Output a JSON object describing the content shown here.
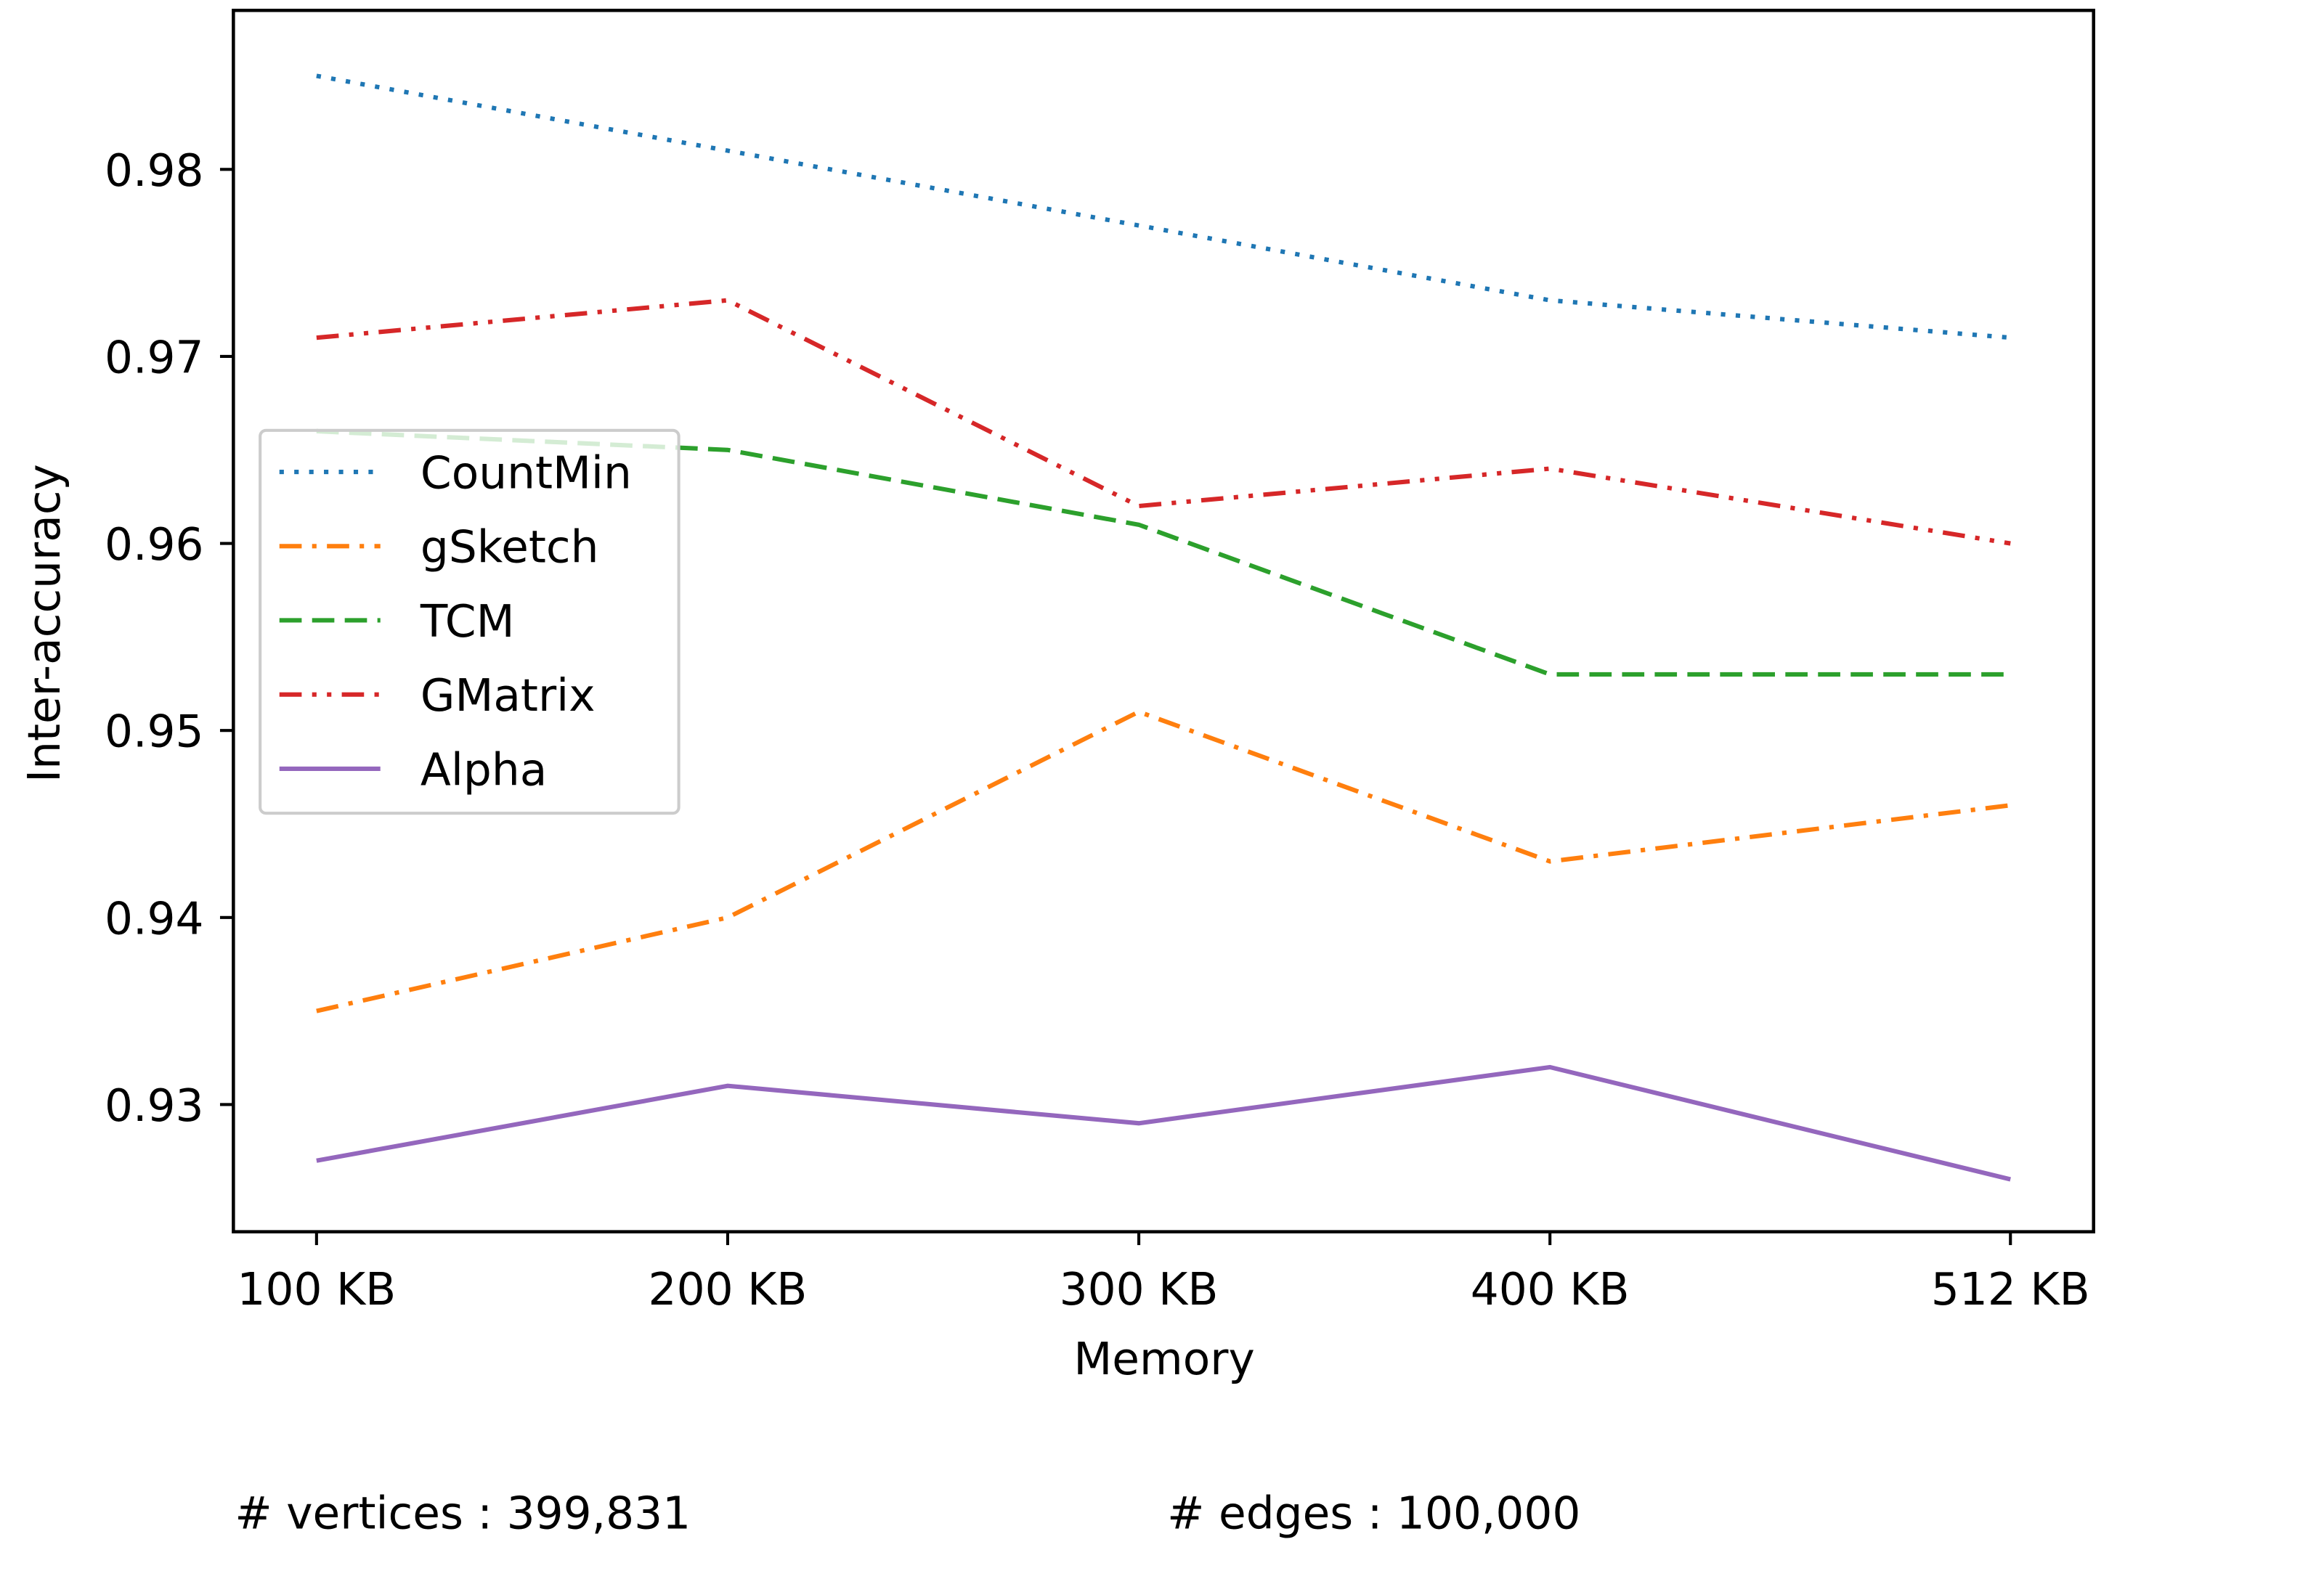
{
  "chart_data": {
    "type": "line",
    "categories": [
      "100 KB",
      "200 KB",
      "300 KB",
      "400 KB",
      "512 KB"
    ],
    "x": [
      100,
      200,
      300,
      400,
      512
    ],
    "xlabel": "Memory",
    "ylabel": "Inter-accuracy",
    "ylim": [
      0.9232,
      0.9885
    ],
    "yticks": [
      0.93,
      0.94,
      0.95,
      0.96,
      0.97,
      0.98
    ],
    "ytick_labels": [
      "0.93",
      "0.94",
      "0.95",
      "0.96",
      "0.97",
      "0.98"
    ],
    "grid": false,
    "legend_position": "center-left",
    "series": [
      {
        "name": "CountMin",
        "color": "#1f77b4",
        "style": "dotted",
        "values": [
          0.985,
          0.981,
          0.977,
          0.973,
          0.971
        ]
      },
      {
        "name": "gSketch",
        "color": "#ff7f0e",
        "style": "dashdot",
        "values": [
          0.935,
          0.94,
          0.951,
          0.943,
          0.946
        ]
      },
      {
        "name": "TCM",
        "color": "#2ca02c",
        "style": "dashed",
        "values": [
          0.966,
          0.965,
          0.961,
          0.953,
          0.953
        ]
      },
      {
        "name": "GMatrix",
        "color": "#d62728",
        "style": "dashdotdot",
        "values": [
          0.971,
          0.973,
          0.962,
          0.964,
          0.96
        ]
      },
      {
        "name": "Alpha",
        "color": "#9467bd",
        "style": "solid",
        "values": [
          0.927,
          0.931,
          0.929,
          0.932,
          0.926
        ]
      }
    ]
  },
  "footer": {
    "vertices": "# vertices : 399,831",
    "edges": "# edges : 100,000"
  }
}
